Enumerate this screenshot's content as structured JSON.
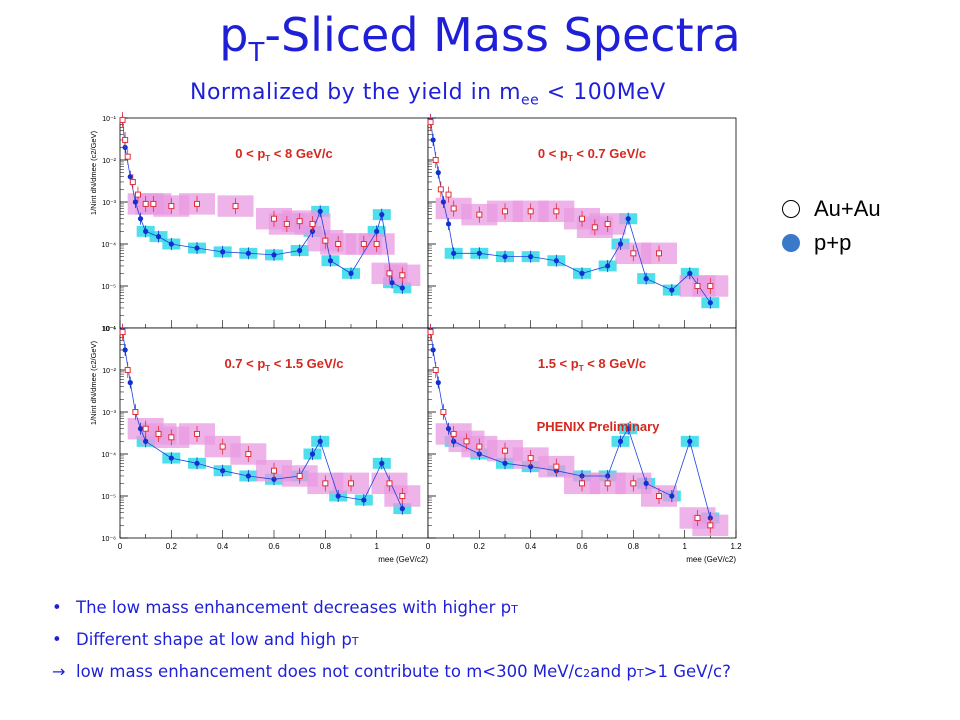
{
  "title": {
    "main": "p",
    "sub": "T",
    "rest": "-Sliced Mass Spectra"
  },
  "subtitle": {
    "pre": "Normalized by the yield in m",
    "sub": "ee",
    "post": " < 100MeV"
  },
  "legend": {
    "open_label": "Au+Au",
    "filled_label": "p+p"
  },
  "colors": {
    "title": "#1f1fd8",
    "auau": "#e0303a",
    "pp": "#1030d0",
    "sys_auau": "#e89ae0",
    "sys_pp": "#30d8e8",
    "label": "#d4281e"
  },
  "watermark": "PHENIX Preliminary",
  "notes": [
    {
      "text": "The low mass enhancement decreases with  higher p",
      "sub": "T",
      "tail": ""
    },
    {
      "text": "Different shape at low and high p",
      "sub": "T",
      "tail": ""
    },
    {
      "text": "low mass enhancement does not contribute to m<300 MeV/c",
      "sup": "2",
      "mid": " and p",
      "sub": "T",
      "tail": ">1 GeV/c?"
    }
  ],
  "chart_data": [
    {
      "type": "scatter",
      "panel_label": "0 < pT < 8 GeV/c",
      "ylabel": "1/Nint dN/dmee (c2/GeV)",
      "xlabel": "",
      "xlim": [
        0,
        1.2
      ],
      "ylim_log10": [
        -6,
        -1
      ],
      "x_ticks": [],
      "y_ticks": [
        "10-1",
        "10-2",
        "10-3",
        "10-4",
        "10-5",
        "10-6"
      ],
      "series": [
        {
          "name": "Au+Au",
          "x": [
            0.01,
            0.02,
            0.03,
            0.05,
            0.07,
            0.1,
            0.13,
            0.2,
            0.3,
            0.45,
            0.6,
            0.65,
            0.7,
            0.75,
            0.8,
            0.85,
            0.95,
            1.0,
            1.05,
            1.1
          ],
          "y": [
            0.09,
            0.03,
            0.012,
            0.003,
            0.0015,
            0.0009,
            0.0009,
            0.0008,
            0.0009,
            0.0008,
            0.0004,
            0.0003,
            0.00035,
            0.0003,
            0.00012,
            0.0001,
            0.0001,
            0.0001,
            2e-05,
            1.8e-05
          ]
        },
        {
          "name": "p+p",
          "x": [
            0.01,
            0.02,
            0.04,
            0.06,
            0.08,
            0.1,
            0.15,
            0.2,
            0.3,
            0.4,
            0.5,
            0.6,
            0.7,
            0.75,
            0.78,
            0.82,
            0.9,
            1.0,
            1.02,
            1.06,
            1.1
          ],
          "y": [
            0.09,
            0.02,
            0.004,
            0.001,
            0.0004,
            0.0002,
            0.00015,
            0.0001,
            8e-05,
            6.5e-05,
            6e-05,
            5.5e-05,
            7e-05,
            0.0002,
            0.0006,
            4e-05,
            2e-05,
            0.0002,
            0.0005,
            1.2e-05,
            9e-06
          ]
        }
      ]
    },
    {
      "type": "scatter",
      "panel_label": "0 < pT < 0.7 GeV/c",
      "xlim": [
        0,
        1.2
      ],
      "ylim_log10": [
        -6,
        -1
      ],
      "series": [
        {
          "name": "Au+Au",
          "x": [
            0.01,
            0.03,
            0.05,
            0.08,
            0.1,
            0.2,
            0.3,
            0.4,
            0.5,
            0.6,
            0.65,
            0.7,
            0.8,
            0.9,
            1.05,
            1.1
          ],
          "y": [
            0.08,
            0.01,
            0.002,
            0.0015,
            0.0007,
            0.0005,
            0.0006,
            0.0006,
            0.0006,
            0.0004,
            0.00025,
            0.0003,
            6e-05,
            6e-05,
            1e-05,
            1e-05
          ]
        },
        {
          "name": "p+p",
          "x": [
            0.01,
            0.02,
            0.04,
            0.06,
            0.08,
            0.1,
            0.2,
            0.3,
            0.4,
            0.5,
            0.6,
            0.7,
            0.75,
            0.78,
            0.85,
            0.95,
            1.02,
            1.1
          ],
          "y": [
            0.09,
            0.03,
            0.005,
            0.001,
            0.0003,
            6e-05,
            6e-05,
            5e-05,
            5e-05,
            4e-05,
            2e-05,
            3e-05,
            0.0001,
            0.0004,
            1.5e-05,
            8e-06,
            2e-05,
            4e-06
          ]
        }
      ]
    },
    {
      "type": "scatter",
      "panel_label": "0.7 < pT < 1.5 GeV/c",
      "ylabel": "1/Nint dN/dmee (c2/GeV)",
      "xlabel": "mee (GeV/c2)",
      "xlim": [
        0,
        1.2
      ],
      "ylim_log10": [
        -6,
        -1
      ],
      "x_ticks": [
        "0",
        "0.2",
        "0.4",
        "0.6",
        "0.8",
        "1"
      ],
      "y_ticks": [
        "10-1",
        "10-2",
        "10-3",
        "10-4",
        "10-5",
        "10-6"
      ],
      "series": [
        {
          "name": "Au+Au",
          "x": [
            0.01,
            0.03,
            0.06,
            0.1,
            0.15,
            0.2,
            0.3,
            0.4,
            0.5,
            0.6,
            0.7,
            0.8,
            0.9,
            1.05,
            1.1
          ],
          "y": [
            0.08,
            0.01,
            0.001,
            0.0004,
            0.0003,
            0.00025,
            0.0003,
            0.00015,
            0.0001,
            4e-05,
            3e-05,
            2e-05,
            2e-05,
            2e-05,
            1e-05
          ]
        },
        {
          "name": "p+p",
          "x": [
            0.01,
            0.02,
            0.04,
            0.06,
            0.08,
            0.1,
            0.2,
            0.3,
            0.4,
            0.5,
            0.6,
            0.7,
            0.75,
            0.78,
            0.85,
            0.95,
            1.02,
            1.1
          ],
          "y": [
            0.09,
            0.03,
            0.005,
            0.001,
            0.0004,
            0.0002,
            8e-05,
            6e-05,
            4e-05,
            3e-05,
            2.5e-05,
            3e-05,
            0.0001,
            0.0002,
            1e-05,
            8e-06,
            6e-05,
            5e-06
          ]
        }
      ]
    },
    {
      "type": "scatter",
      "panel_label": "1.5 < pT < 8 GeV/c",
      "xlabel": "mee (GeV/c2)",
      "xlim": [
        0,
        1.2
      ],
      "ylim_log10": [
        -6,
        -1
      ],
      "x_ticks": [
        "0",
        "0.2",
        "0.4",
        "0.6",
        "0.8",
        "1",
        "1.2"
      ],
      "series": [
        {
          "name": "Au+Au",
          "x": [
            0.01,
            0.03,
            0.06,
            0.1,
            0.15,
            0.2,
            0.3,
            0.4,
            0.5,
            0.6,
            0.7,
            0.8,
            0.9,
            1.05,
            1.1
          ],
          "y": [
            0.08,
            0.01,
            0.001,
            0.0003,
            0.0002,
            0.00015,
            0.00012,
            8e-05,
            5e-05,
            2e-05,
            2e-05,
            2e-05,
            1e-05,
            3e-06,
            2e-06
          ]
        },
        {
          "name": "p+p",
          "x": [
            0.01,
            0.02,
            0.04,
            0.06,
            0.08,
            0.1,
            0.2,
            0.3,
            0.4,
            0.5,
            0.6,
            0.7,
            0.75,
            0.78,
            0.85,
            0.95,
            1.02,
            1.1
          ],
          "y": [
            0.09,
            0.03,
            0.005,
            0.001,
            0.0004,
            0.0002,
            0.0001,
            6e-05,
            5e-05,
            4e-05,
            3e-05,
            3e-05,
            0.0002,
            0.0004,
            2e-05,
            1e-05,
            0.0002,
            3e-06
          ]
        }
      ]
    }
  ]
}
